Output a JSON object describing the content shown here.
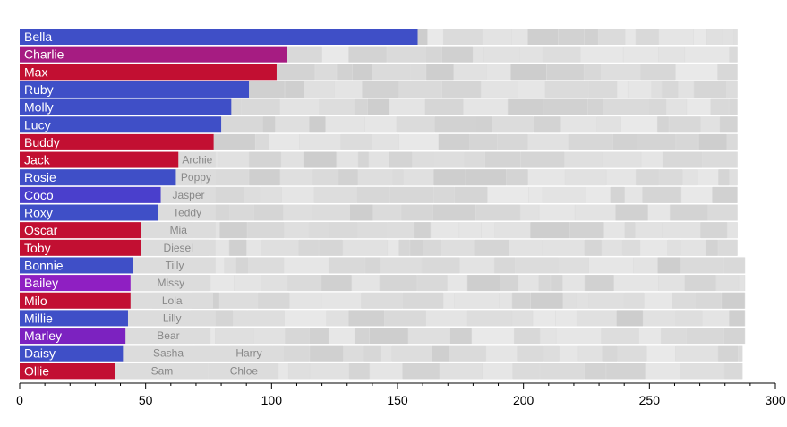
{
  "chart_data": {
    "type": "bar",
    "orientation": "horizontal",
    "title": "",
    "xlabel": "",
    "ylabel": "",
    "xlim": [
      0,
      300
    ],
    "xticks": [
      "0",
      "50",
      "100",
      "150",
      "200",
      "250",
      "300"
    ],
    "grid": false,
    "legend": "none",
    "categories": [
      "Bella",
      "Charlie",
      "Max",
      "Ruby",
      "Molly",
      "Lucy",
      "Buddy",
      "Jack",
      "Rosie",
      "Coco",
      "Roxy",
      "Oscar",
      "Toby",
      "Bonnie",
      "Bailey",
      "Milo",
      "Millie",
      "Marley",
      "Daisy",
      "Ollie"
    ],
    "values": [
      158,
      106,
      102,
      91,
      84,
      80,
      77,
      63,
      62,
      56,
      55,
      48,
      48,
      45,
      44,
      44,
      43,
      42,
      41,
      38
    ],
    "bar_colors": [
      "#3f4fc7",
      "#a61c82",
      "#c20f32",
      "#3f4fc7",
      "#3f4fc7",
      "#3f4fc7",
      "#c20f32",
      "#c20f32",
      "#3f4fc7",
      "#4a3fcc",
      "#3f4fc7",
      "#c20f32",
      "#c20f32",
      "#3f4fc7",
      "#8f1fc2",
      "#c20f32",
      "#3f4fc7",
      "#7c22c0",
      "#3f4fc7",
      "#c20f32"
    ],
    "row_totals": [
      285,
      285,
      285,
      285,
      285,
      285,
      285,
      285,
      285,
      285,
      285,
      285,
      285,
      288,
      288,
      288,
      288,
      288,
      287,
      287
    ],
    "background_names": [
      [],
      [],
      [],
      [],
      [],
      [],
      [],
      [
        "Archie"
      ],
      [
        "Poppy"
      ],
      [
        "Jasper"
      ],
      [
        "Teddy"
      ],
      [
        "Mia"
      ],
      [
        "Diesel"
      ],
      [
        "Tilly"
      ],
      [
        "Missy"
      ],
      [
        "Lola"
      ],
      [
        "Lilly"
      ],
      [
        "Bear"
      ],
      [
        "Sasha",
        "Harry"
      ],
      [
        "Sam",
        "Chloe"
      ]
    ],
    "background_segments": [
      [],
      [],
      [],
      [],
      [],
      [],
      [],
      [
        [
          63,
          78
        ]
      ],
      [
        [
          62,
          78
        ]
      ],
      [
        [
          56,
          78
        ]
      ],
      [
        [
          55,
          78
        ]
      ],
      [
        [
          48,
          78
        ]
      ],
      [
        [
          48,
          78
        ]
      ],
      [
        [
          45,
          78
        ]
      ],
      [
        [
          44,
          76
        ]
      ],
      [
        [
          44,
          77
        ]
      ],
      [
        [
          43,
          78
        ]
      ],
      [
        [
          42,
          76
        ]
      ],
      [
        [
          41,
          77
        ],
        [
          77,
          105
        ]
      ],
      [
        [
          38,
          75
        ],
        [
          75,
          103
        ]
      ]
    ],
    "colors": {
      "background_bar": "#dddddd",
      "axis": "#000000",
      "bar_text": "#ffffff",
      "bg_text": "#888888"
    }
  }
}
